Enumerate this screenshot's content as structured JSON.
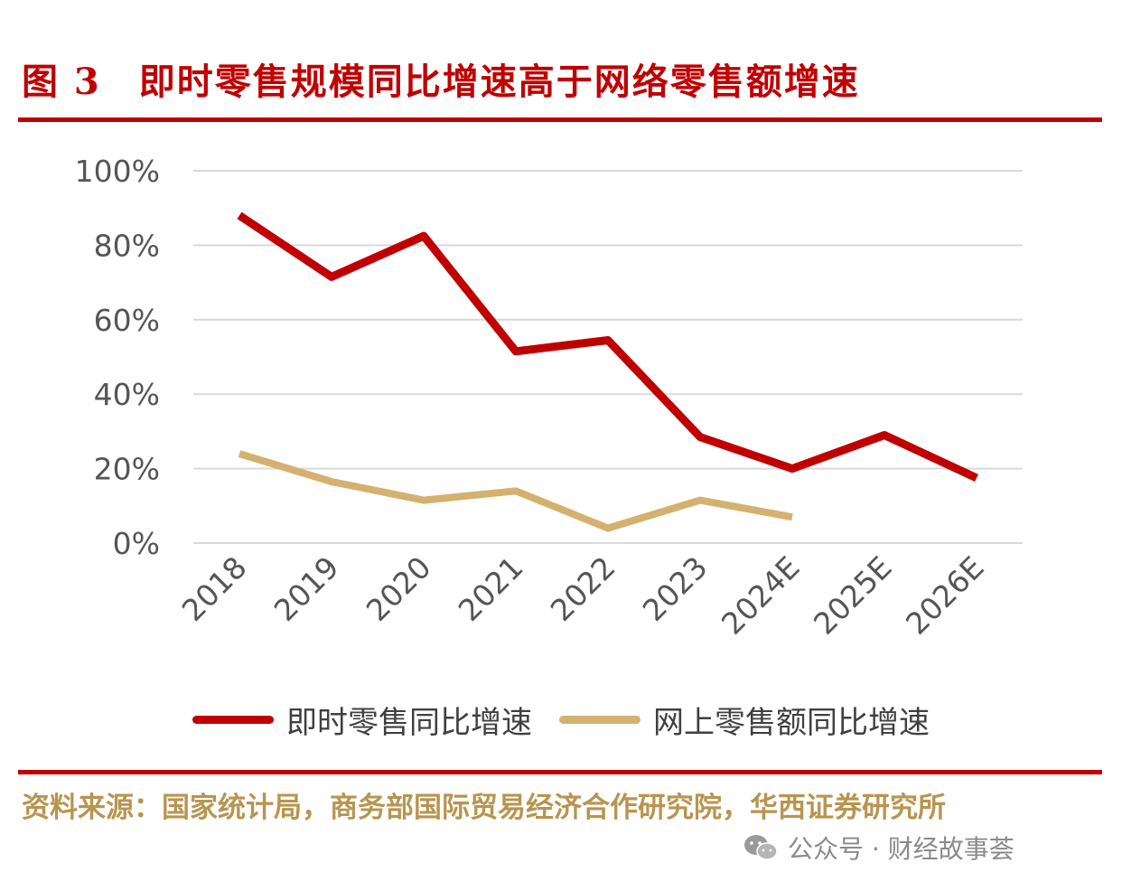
{
  "header": {
    "title": "图 3　即时零售规模同比增速高于网络零售额增速"
  },
  "colors": {
    "brand_red": "#c00000",
    "series_red": "#c00000",
    "series_tan": "#d4b16f",
    "grid": "#d9d9d9",
    "source_text": "#b8954f"
  },
  "chart_data": {
    "type": "line",
    "categories": [
      "2018",
      "2019",
      "2020",
      "2021",
      "2022",
      "2023",
      "2024E",
      "2025E",
      "2026E"
    ],
    "series": [
      {
        "name": "即时零售同比增速",
        "color": "#c00000",
        "values": [
          0.88,
          0.715,
          0.825,
          0.515,
          0.545,
          0.285,
          0.2,
          0.29,
          0.175
        ]
      },
      {
        "name": "网上零售额同比增速",
        "color": "#d4b16f",
        "values": [
          0.24,
          0.165,
          0.115,
          0.14,
          0.04,
          0.115,
          0.07,
          null,
          null
        ]
      }
    ],
    "ylim": [
      0,
      1.0
    ],
    "yticks": [
      "0%",
      "20%",
      "40%",
      "60%",
      "80%",
      "100%"
    ],
    "grid": true,
    "legend_position": "bottom"
  },
  "footer": {
    "source": "资料来源：国家统计局，商务部国际贸易经济合作研究院，华西证券研究所",
    "watermark": "公众号 · 财经故事荟",
    "watermark_icon": "wechat-icon"
  }
}
